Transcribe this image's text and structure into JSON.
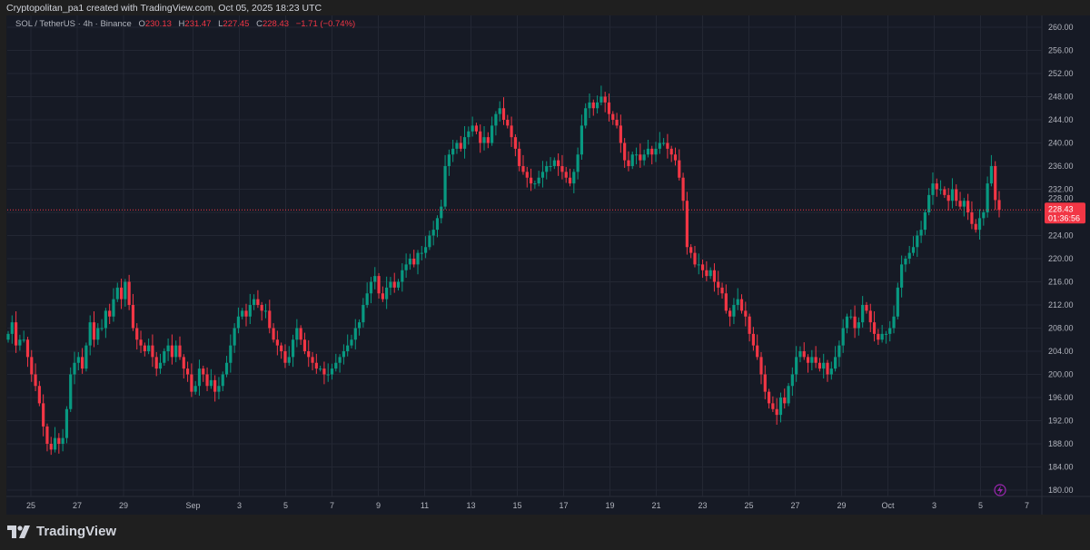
{
  "caption": "Cryptopolitan_pa1 created with TradingView.com, Oct 05, 2025 18:23 UTC",
  "legend": {
    "symbol": "SOL / TetherUS · 4h · Binance",
    "open_label": "O",
    "open": "230.13",
    "high_label": "H",
    "high": "231.47",
    "low_label": "L",
    "low": "227.45",
    "close_label": "C",
    "close": "228.43",
    "change": "−1.71 (−0.74%)"
  },
  "last_price": {
    "price": "228.43",
    "countdown": "01:36:56"
  },
  "footer": {
    "brand": "TradingView"
  },
  "colors": {
    "up": "#089981",
    "down": "#f23645",
    "background": "#161a25",
    "grid": "#232733",
    "last_price": "#f23645"
  },
  "icons": {
    "alert": "lightning-icon",
    "logo": "tradingview-logo"
  },
  "chart_data": {
    "type": "candlestick",
    "timeframe": "4h",
    "symbol": "SOL / TetherUS",
    "ylim": [
      180,
      260
    ],
    "y_ticks": [
      "180.00",
      "184.00",
      "188.00",
      "192.00",
      "196.00",
      "200.00",
      "204.00",
      "208.00",
      "212.00",
      "216.00",
      "220.00",
      "224.00",
      "228.00",
      "232.00",
      "236.00",
      "240.00",
      "244.00",
      "248.00",
      "252.00",
      "256.00",
      "260.00"
    ],
    "x_ticks": [
      {
        "date": "2025-08-25",
        "label": "25"
      },
      {
        "date": "2025-08-27",
        "label": "27"
      },
      {
        "date": "2025-08-29",
        "label": "29"
      },
      {
        "date": "2025-09-01",
        "label": "Sep"
      },
      {
        "date": "2025-09-03",
        "label": "3"
      },
      {
        "date": "2025-09-05",
        "label": "5"
      },
      {
        "date": "2025-09-07",
        "label": "7"
      },
      {
        "date": "2025-09-09",
        "label": "9"
      },
      {
        "date": "2025-09-11",
        "label": "11"
      },
      {
        "date": "2025-09-13",
        "label": "13"
      },
      {
        "date": "2025-09-15",
        "label": "15"
      },
      {
        "date": "2025-09-17",
        "label": "17"
      },
      {
        "date": "2025-09-19",
        "label": "19"
      },
      {
        "date": "2025-09-21",
        "label": "21"
      },
      {
        "date": "2025-09-23",
        "label": "23"
      },
      {
        "date": "2025-09-25",
        "label": "25"
      },
      {
        "date": "2025-09-27",
        "label": "27"
      },
      {
        "date": "2025-09-29",
        "label": "29"
      },
      {
        "date": "2025-10-01",
        "label": "Oct"
      },
      {
        "date": "2025-10-03",
        "label": "3"
      },
      {
        "date": "2025-10-05",
        "label": "5"
      },
      {
        "date": "2025-10-07",
        "label": "7"
      }
    ],
    "closes": [
      207,
      209,
      205,
      206,
      206,
      203,
      200,
      198,
      195,
      191,
      188,
      187,
      189,
      188,
      189,
      194,
      200,
      202,
      203,
      201,
      205,
      209,
      206,
      208,
      208,
      211,
      210,
      213,
      215,
      213,
      216,
      212,
      208,
      206,
      205,
      204,
      205,
      203,
      201,
      202,
      204,
      205,
      203,
      205,
      203,
      201,
      200,
      197,
      198,
      201,
      200,
      198,
      199,
      197,
      198,
      200,
      202,
      205,
      208,
      210,
      211,
      210,
      212,
      213,
      212,
      211,
      211,
      208,
      206,
      205,
      204,
      202,
      203,
      206,
      208,
      206,
      204,
      203,
      202,
      201,
      201,
      200,
      200,
      201,
      202,
      203,
      204,
      205,
      206,
      208,
      209,
      212,
      214,
      216,
      217,
      214,
      213,
      215,
      216,
      215,
      216,
      218,
      219,
      220,
      219,
      221,
      221,
      222,
      224,
      225,
      227,
      229,
      236,
      238,
      239,
      240,
      239,
      241,
      242,
      243,
      242,
      240,
      241,
      240,
      243,
      245,
      246,
      244,
      243,
      241,
      239,
      236,
      235,
      234,
      233,
      233,
      234,
      235,
      236,
      236,
      237,
      236,
      235,
      234,
      233,
      235,
      238,
      243,
      246,
      247,
      246,
      247,
      248,
      247,
      245,
      244,
      243,
      240,
      237,
      236,
      238,
      238,
      237,
      238,
      239,
      238,
      239,
      240,
      240,
      239,
      238,
      237,
      234,
      230,
      222,
      221,
      219,
      219,
      218,
      217,
      218,
      216,
      215,
      214,
      211,
      210,
      212,
      213,
      211,
      210,
      207,
      205,
      203,
      200,
      197,
      195,
      194,
      193,
      196,
      195,
      198,
      200,
      203,
      204,
      203,
      202,
      203,
      202,
      201,
      202,
      200,
      201,
      203,
      205,
      208,
      210,
      210,
      208,
      209,
      212,
      211,
      209,
      207,
      206,
      207,
      207,
      208,
      210,
      215,
      219,
      220,
      221,
      222,
      224,
      225,
      228,
      231,
      233,
      232,
      232,
      231,
      230,
      232,
      230,
      229,
      230,
      228,
      226,
      225,
      227,
      228,
      233,
      236,
      230.13,
      228.43
    ],
    "last_price": 228.43
  }
}
